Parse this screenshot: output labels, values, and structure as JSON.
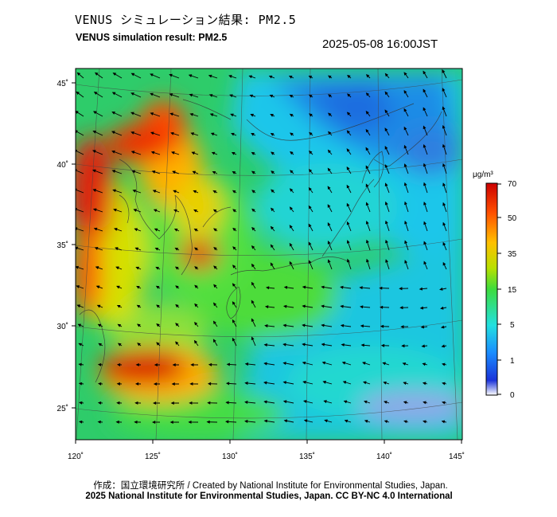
{
  "header": {
    "title_jp": "VENUS シミュレーション結果: PM2.5",
    "title_en": "VENUS simulation result: PM2.5",
    "timestamp": "2025-05-08 16:00JST"
  },
  "map": {
    "lon_ticks": [
      "120˚",
      "125˚",
      "130˚",
      "135˚",
      "140˚",
      "145˚"
    ],
    "lat_ticks": [
      "45˚",
      "40˚",
      "35˚",
      "30˚",
      "25˚"
    ],
    "extent": {
      "lon": [
        120,
        145
      ],
      "lat": [
        23,
        46
      ]
    }
  },
  "colorbar": {
    "unit": "μg/m³",
    "ticks": [
      "70",
      "50",
      "35",
      "15",
      "5",
      "1",
      "0"
    ],
    "colors": [
      "#ffffff",
      "#1a33d9",
      "#1a9fff",
      "#22e0e0",
      "#3ddc3d",
      "#c8e000",
      "#ffc000",
      "#ff5a00",
      "#cc0000"
    ]
  },
  "footer": {
    "credit_line1": "作成：国立環境研究所 / Created by National Institute for Environmental Studies, Japan.",
    "credit_line2": "2025 National Institute for Environmental Studies, Japan. CC BY-NC 4.0 International"
  }
}
